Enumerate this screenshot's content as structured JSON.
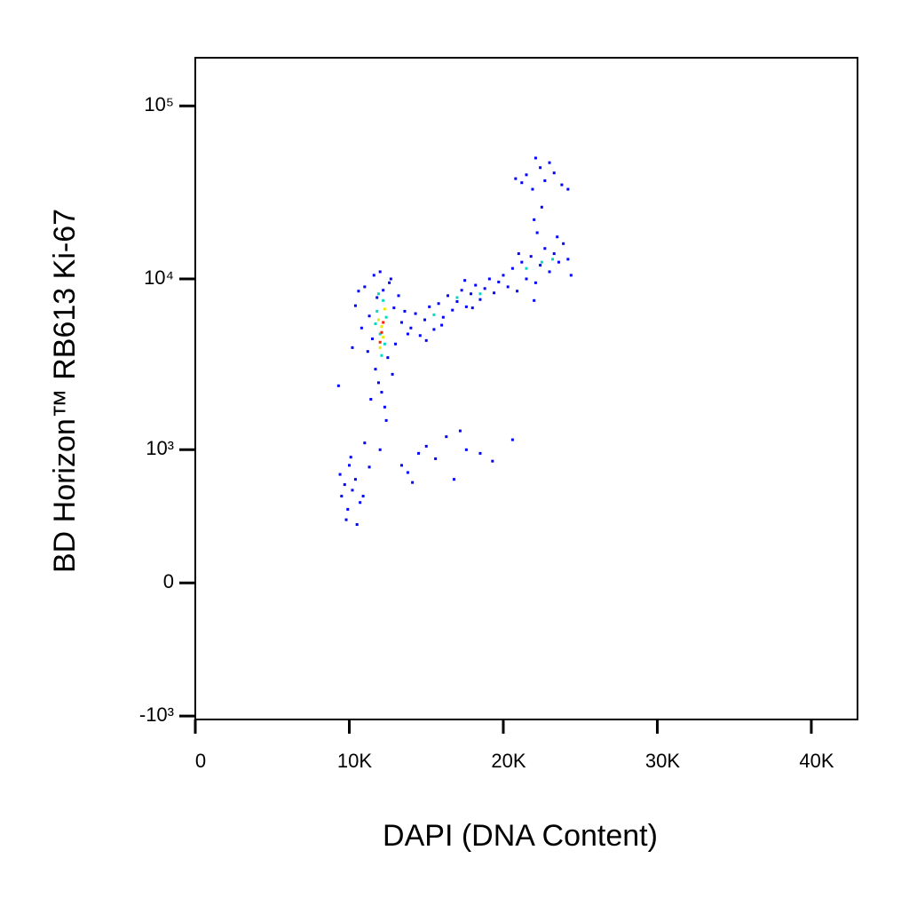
{
  "chart_data": {
    "type": "scatter",
    "xlabel": "DAPI (DNA Content)",
    "ylabel": "BD Horizon™ RB613 Ki-67",
    "xlim": [
      0,
      43000
    ],
    "ylim": [
      -1050,
      190000
    ],
    "yscale": "biexponential",
    "xticks": [
      0,
      {
        "value": 10000,
        "label": "10K"
      },
      {
        "value": 20000,
        "label": "20K"
      },
      {
        "value": 30000,
        "label": "30K"
      },
      {
        "value": 40000,
        "label": "40K"
      }
    ],
    "yticks": [
      {
        "value": -1000,
        "label": "-10³"
      },
      0,
      {
        "value": 1000,
        "label": "10³"
      },
      {
        "value": 10000,
        "label": "10⁴"
      },
      {
        "value": 100000,
        "label": "10⁵"
      }
    ],
    "series": [
      {
        "color": "#0000ff",
        "x": [
          10400,
          10800,
          11000,
          11200,
          11300,
          11500,
          11600,
          11700,
          11800,
          11900,
          12000,
          12100,
          12200,
          12300,
          12500,
          12600,
          12800,
          12900,
          13000,
          13200,
          13400,
          9300,
          10200,
          12400,
          13600,
          13800,
          11400,
          10600,
          12700,
          14000,
          14300,
          14600,
          14900,
          15200,
          15500,
          15800,
          16100,
          16400,
          16700,
          17000,
          17300,
          17600,
          17900,
          18200,
          18500,
          18800,
          19100,
          19400,
          19700,
          15000,
          16000,
          17500,
          18000,
          20000,
          20300,
          20600,
          20900,
          21200,
          21500,
          21800,
          22100,
          22400,
          22700,
          23000,
          23300,
          23600,
          23900,
          24200,
          24400,
          22000,
          23500,
          21000,
          20800,
          21200,
          21500,
          21900,
          22100,
          22400,
          22700,
          23000,
          23300,
          23800,
          24200,
          22000,
          22500,
          22200,
          9400,
          9500,
          9700,
          9900,
          10000,
          10200,
          10400,
          10500,
          10700,
          10900,
          9800,
          10100,
          11000,
          11300,
          12000,
          13400,
          13800,
          14100,
          14500,
          15000,
          15600,
          16300,
          16800,
          17200,
          17600,
          18500,
          19300,
          20600
        ],
        "y": [
          7000,
          5200,
          9000,
          3800,
          6100,
          4500,
          10500,
          3000,
          7800,
          2500,
          11000,
          2200,
          8600,
          1800,
          3500,
          9500,
          2800,
          6800,
          4200,
          8000,
          5600,
          2400,
          4000,
          1500,
          6500,
          4800,
          2000,
          8500,
          10000,
          5200,
          6300,
          4700,
          5800,
          6900,
          5100,
          7200,
          6000,
          8000,
          6600,
          7400,
          8600,
          6900,
          8200,
          9200,
          7600,
          8800,
          10000,
          8300,
          9600,
          4400,
          5400,
          9800,
          6800,
          10500,
          9000,
          11500,
          8500,
          12500,
          10000,
          13500,
          9500,
          12000,
          15000,
          11000,
          14000,
          12500,
          16000,
          13000,
          10500,
          7500,
          17500,
          14000,
          38000,
          36000,
          40000,
          33000,
          50000,
          44000,
          37000,
          47000,
          41000,
          35000,
          33000,
          22000,
          26000,
          18500,
          700,
          500,
          600,
          400,
          800,
          550,
          650,
          300,
          450,
          500,
          330,
          900,
          1100,
          780,
          1000,
          800,
          720,
          620,
          950,
          1050,
          880,
          1200,
          650,
          1300,
          1000,
          950,
          850,
          1150
        ]
      },
      {
        "color": "#00d8c8",
        "x": [
          11800,
          12000,
          12200,
          11700,
          12400,
          12100,
          11900,
          12300,
          15500,
          17000,
          18500,
          21500,
          22500,
          23200
        ],
        "y": [
          6500,
          4800,
          7500,
          5500,
          6000,
          3600,
          8200,
          4200,
          6200,
          7800,
          8200,
          11500,
          12500,
          13000
        ]
      },
      {
        "color": "#e8e800",
        "x": [
          11900,
          12100,
          12300,
          12000,
          12200
        ],
        "y": [
          5800,
          5300,
          6700,
          4000,
          4600
        ]
      },
      {
        "color": "#ff2000",
        "x": [
          12100,
          12200,
          12000
        ],
        "y": [
          4900,
          5600,
          4300
        ]
      }
    ]
  }
}
